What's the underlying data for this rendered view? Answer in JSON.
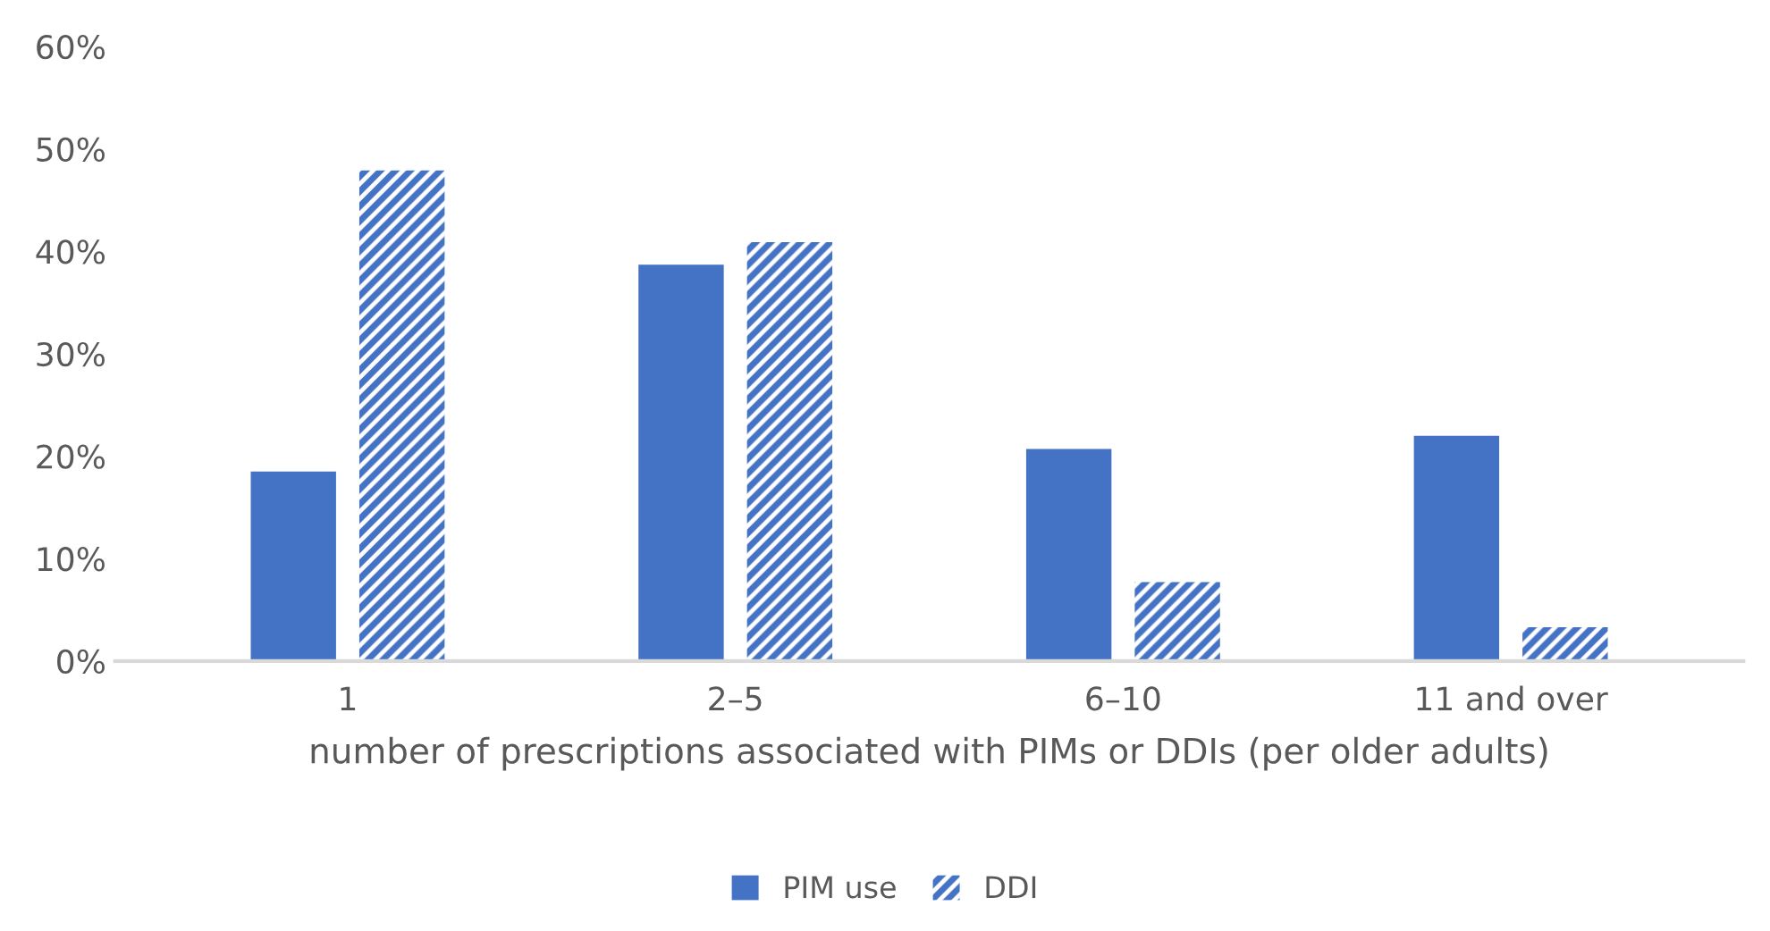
{
  "chart_data": {
    "type": "bar",
    "categories": [
      "1",
      "2–5",
      "6–10",
      "11 and over"
    ],
    "xlabel": "number of prescriptions associated with PIMs or DDIs (per older adults)",
    "series": [
      {
        "name": "PIM use",
        "color": "#4472c4",
        "values": [
          18.5,
          38.7,
          20.7,
          22.0
        ]
      },
      {
        "name": "DDI",
        "color": "#4472c4",
        "values": [
          47.9,
          40.9,
          7.7,
          3.3
        ]
      }
    ],
    "ylim": [
      0,
      60
    ],
    "yticks": [
      {
        "value": 0,
        "label": "0%"
      },
      {
        "value": 10,
        "label": "10%"
      },
      {
        "value": 20,
        "label": "20%"
      },
      {
        "value": 30,
        "label": "30%"
      },
      {
        "value": 40,
        "label": "40%"
      },
      {
        "value": 50,
        "label": "50%"
      },
      {
        "value": 60,
        "label": "60%"
      }
    ],
    "grid": false,
    "legend": "bottom"
  }
}
